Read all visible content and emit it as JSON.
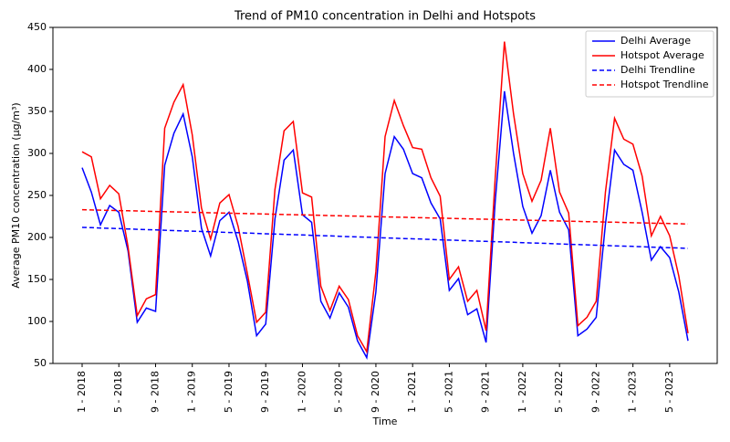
{
  "chart_data": {
    "type": "line",
    "title": "Trend of PM10 concentration in Delhi and Hotspots",
    "x_label": "Time",
    "y_label": "Average PM10 concentration (µg/m³)",
    "categories": [
      "1 - 2018",
      null,
      null,
      null,
      "5 - 2018",
      null,
      null,
      null,
      "9 - 2018",
      null,
      null,
      null,
      "1 - 2019",
      null,
      null,
      null,
      "5 - 2019",
      null,
      null,
      null,
      "9 - 2019",
      null,
      null,
      null,
      "1 - 2020",
      null,
      null,
      null,
      "5 - 2020",
      null,
      null,
      null,
      "9 - 2020",
      null,
      null,
      null,
      "1 - 2021",
      null,
      null,
      null,
      "5 - 2021",
      null,
      null,
      null,
      "9 - 2021",
      null,
      null,
      null,
      "1 - 2022",
      null,
      null,
      null,
      "5 - 2022",
      null,
      null,
      null,
      "9 - 2022",
      null,
      null,
      null,
      "1 - 2023",
      null,
      null,
      null,
      "5 - 2023",
      null,
      null
    ],
    "series": [
      {
        "name": "Delhi Average",
        "color": "#0000ff",
        "dashed": false,
        "values": [
          283,
          254,
          215,
          238,
          230,
          184,
          99,
          116,
          112,
          286,
          324,
          347,
          296,
          211,
          178,
          220,
          230,
          195,
          148,
          83,
          97,
          222,
          292,
          304,
          227,
          218,
          124,
          104,
          134,
          117,
          77,
          57,
          135,
          276,
          320,
          305,
          276,
          271,
          241,
          222,
          137,
          151,
          108,
          115,
          75,
          243,
          374,
          300,
          237,
          205,
          226,
          280,
          230,
          209,
          83,
          91,
          105,
          216,
          304,
          287,
          280,
          230,
          173,
          189,
          176,
          135,
          77
        ]
      },
      {
        "name": "Hotspot Average",
        "color": "#ff0000",
        "dashed": false,
        "values": [
          302,
          296,
          246,
          262,
          252,
          189,
          107,
          127,
          132,
          330,
          361,
          382,
          322,
          235,
          198,
          241,
          251,
          213,
          157,
          99,
          111,
          257,
          327,
          338,
          253,
          248,
          142,
          113,
          142,
          126,
          83,
          64,
          159,
          320,
          363,
          333,
          307,
          305,
          271,
          249,
          150,
          165,
          124,
          137,
          89,
          271,
          433,
          347,
          276,
          243,
          268,
          330,
          254,
          229,
          95,
          105,
          124,
          254,
          342,
          317,
          311,
          273,
          202,
          225,
          202,
          154,
          86
        ]
      },
      {
        "name": "Delhi Trendline",
        "color": "#0000ff",
        "dashed": true,
        "values": [
          212.0,
          211.6,
          211.2,
          210.9,
          210.5,
          210.1,
          209.7,
          209.3,
          209.0,
          208.6,
          208.2,
          207.8,
          207.5,
          207.1,
          206.7,
          206.3,
          205.9,
          205.6,
          205.2,
          204.8,
          204.4,
          204.0,
          203.7,
          203.3,
          202.9,
          202.5,
          202.2,
          201.8,
          201.4,
          201.0,
          200.6,
          200.3,
          199.9,
          199.5,
          199.1,
          198.7,
          198.4,
          198.0,
          197.6,
          197.2,
          196.8,
          196.5,
          196.1,
          195.7,
          195.3,
          195.0,
          194.6,
          194.2,
          193.8,
          193.4,
          193.1,
          192.7,
          192.3,
          191.9,
          191.5,
          191.2,
          190.8,
          190.4,
          190.0,
          189.7,
          189.3,
          188.9,
          188.5,
          188.1,
          187.8,
          187.4,
          187.0
        ]
      },
      {
        "name": "Hotspot Trendline",
        "color": "#ff0000",
        "dashed": true,
        "values": [
          233.0,
          232.7,
          232.5,
          232.2,
          232.0,
          231.7,
          231.5,
          231.2,
          230.9,
          230.7,
          230.4,
          230.2,
          229.9,
          229.7,
          229.4,
          229.1,
          228.9,
          228.6,
          228.4,
          228.1,
          227.8,
          227.6,
          227.3,
          227.1,
          226.8,
          226.6,
          226.3,
          226.0,
          225.8,
          225.5,
          225.3,
          225.0,
          224.8,
          224.5,
          224.2,
          224.0,
          223.7,
          223.5,
          223.2,
          223.0,
          222.7,
          222.4,
          222.2,
          221.9,
          221.7,
          221.4,
          221.2,
          220.9,
          220.6,
          220.4,
          220.1,
          219.9,
          219.6,
          219.3,
          219.1,
          218.8,
          218.6,
          218.3,
          218.1,
          217.8,
          217.5,
          217.3,
          217.0,
          216.8,
          216.5,
          216.3,
          216.0
        ]
      }
    ],
    "ylim": [
      50,
      450
    ],
    "yticks": [
      50,
      100,
      150,
      200,
      250,
      300,
      350,
      400,
      450
    ],
    "grid": false,
    "legend": "upper right"
  }
}
